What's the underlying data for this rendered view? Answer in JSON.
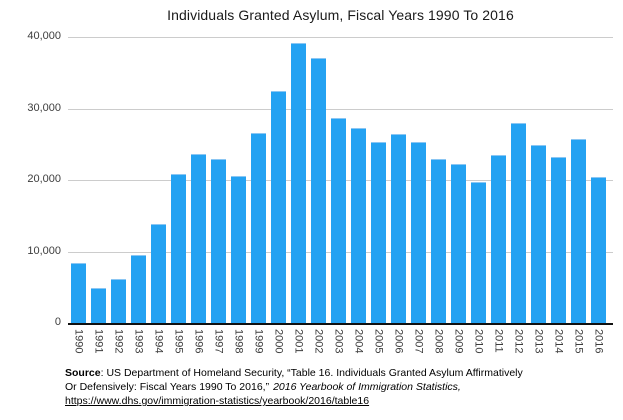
{
  "chart_data": {
    "type": "bar",
    "title": "Individuals Granted Asylum, Fiscal Years 1990 To 2016",
    "categories": [
      "1990",
      "1991",
      "1992",
      "1993",
      "1994",
      "1995",
      "1996",
      "1997",
      "1998",
      "1999",
      "2000",
      "2001",
      "2002",
      "2003",
      "2004",
      "2005",
      "2006",
      "2007",
      "2008",
      "2009",
      "2010",
      "2011",
      "2012",
      "2013",
      "2014",
      "2015",
      "2016"
    ],
    "values": [
      8400,
      4900,
      6200,
      9500,
      13800,
      20800,
      23600,
      23000,
      20500,
      26600,
      32400,
      39100,
      37000,
      28700,
      27300,
      25300,
      26500,
      25300,
      23000,
      22200,
      19700,
      23500,
      28000,
      24900,
      23200,
      25800,
      20400
    ],
    "xlabel": "",
    "ylabel": "",
    "ylim": [
      0,
      40000
    ],
    "y_tick_labels": [
      "40,000",
      "30,000",
      "20,000",
      "10,000",
      "0"
    ],
    "y_tick_values": [
      40000,
      30000,
      20000,
      10000,
      0
    ],
    "grid": true,
    "legend": "none",
    "bar_color": "#24a2f2"
  },
  "colors": {
    "bar": "#24a2f2",
    "gridline": "#cccccc",
    "axis_baseline": "#111111",
    "title_text": "#1a1a1a",
    "tick_text": "#3d3d3d"
  },
  "source": {
    "label": "Source",
    "line1_rest": ": US Department of Homeland Security, “Table 16. Individuals Granted Asylum Affirmatively",
    "line2_regular": "Or Defensively: Fiscal Years 1990 To 2016,”",
    "line2_italic": "2016 Yearbook of Immigration Statistics,",
    "link_text": "https://www.dhs.gov/immigration-statistics/yearbook/2016/table16"
  }
}
